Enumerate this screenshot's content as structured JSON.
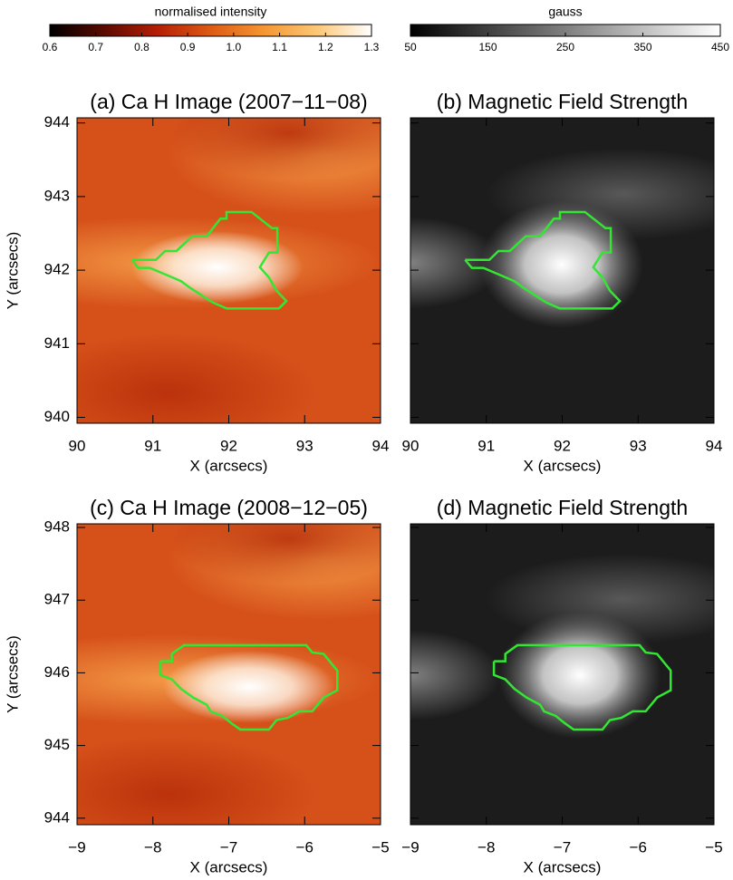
{
  "chart_data": [
    {
      "type": "colorbar",
      "label": "normalised intensity",
      "xlim": [
        0.6,
        1.3
      ],
      "xticks": [
        0.6,
        0.7,
        0.8,
        0.9,
        {
          "value": 1,
          "label": "1.0"
        },
        1.1,
        1.2,
        1.3
      ],
      "colormap": [
        "#000000",
        "#5a0a00",
        "#b41e05",
        "#dc5a14",
        "#f59632",
        "#fcc878",
        "#ffffff"
      ]
    },
    {
      "type": "colorbar",
      "label": "gauss",
      "xlim": [
        50,
        450
      ],
      "xticks": [
        50,
        150,
        250,
        350,
        450
      ],
      "colormap": [
        "#000000",
        "#ffffff"
      ]
    },
    {
      "type": "image",
      "title": "(a) Ca H Image (2007−11−08)",
      "xlabel": "X (arcsecs)",
      "ylabel": "Y (arcsecs)",
      "xlim": [
        90,
        94
      ],
      "ylim": [
        939.92,
        944.07
      ],
      "xticks": [
        90,
        91,
        92,
        93,
        94
      ],
      "yticks": [
        940,
        941,
        942,
        943,
        944
      ],
      "contour": {
        "color": "#33e633",
        "x": [
          90.72,
          91.04,
          91.16,
          91.31,
          91.52,
          91.71,
          91.89,
          91.97,
          91.97,
          92.3,
          92.57,
          92.64,
          92.64,
          92.53,
          92.41,
          92.53,
          92.63,
          92.76,
          92.66,
          91.97,
          91.79,
          91.64,
          91.49,
          91.37,
          91.19,
          90.96,
          90.81,
          90.72
        ],
        "y": [
          942.14,
          942.14,
          942.26,
          942.26,
          942.46,
          942.46,
          942.7,
          942.7,
          942.79,
          942.79,
          942.57,
          942.57,
          942.24,
          942.24,
          942.04,
          941.9,
          941.72,
          941.58,
          941.48,
          941.48,
          941.56,
          941.66,
          941.76,
          941.85,
          941.93,
          942.03,
          942.03,
          942.14
        ]
      }
    },
    {
      "type": "image",
      "title": "(b) Magnetic Field Strength",
      "xlabel": "X (arcsecs)",
      "xlim": [
        90,
        94
      ],
      "ylim": [
        939.92,
        944.07
      ],
      "xticks": [
        90,
        91,
        92,
        93,
        94
      ],
      "yticks": [
        940,
        941,
        942,
        943,
        944
      ],
      "contour": {
        "color": "#33e633",
        "x": [
          90.72,
          91.04,
          91.16,
          91.31,
          91.52,
          91.71,
          91.89,
          91.97,
          91.97,
          92.3,
          92.57,
          92.64,
          92.64,
          92.53,
          92.41,
          92.53,
          92.63,
          92.76,
          92.66,
          91.97,
          91.79,
          91.64,
          91.49,
          91.37,
          91.19,
          90.96,
          90.81,
          90.72
        ],
        "y": [
          942.14,
          942.14,
          942.26,
          942.26,
          942.46,
          942.46,
          942.7,
          942.7,
          942.79,
          942.79,
          942.57,
          942.57,
          942.24,
          942.24,
          942.04,
          941.9,
          941.72,
          941.58,
          941.48,
          941.48,
          941.56,
          941.66,
          941.76,
          941.85,
          941.93,
          942.03,
          942.03,
          942.14
        ]
      }
    },
    {
      "type": "image",
      "title": "(c) Ca H Image (2008−12−05)",
      "xlabel": "X (arcsecs)",
      "ylabel": "Y (arcsecs)",
      "xlim": [
        -9,
        -5
      ],
      "ylim": [
        943.91,
        948.05
      ],
      "xticks": [
        {
          "value": -9,
          "label": "−9"
        },
        {
          "value": -8,
          "label": "−8"
        },
        {
          "value": -7,
          "label": "−7"
        },
        {
          "value": -6,
          "label": "−6"
        },
        {
          "value": -5,
          "label": "−5"
        }
      ],
      "yticks": [
        944,
        945,
        946,
        947,
        948
      ],
      "contour": {
        "color": "#33e633",
        "x": [
          -7.9,
          -7.75,
          -7.75,
          -7.59,
          -5.98,
          -5.9,
          -5.75,
          -5.57,
          -5.57,
          -5.75,
          -5.9,
          -6.07,
          -6.22,
          -6.37,
          -6.47,
          -6.85,
          -6.97,
          -7.09,
          -7.24,
          -7.29,
          -7.47,
          -7.63,
          -7.75,
          -7.9,
          -7.9
        ],
        "y": [
          946.16,
          946.16,
          946.26,
          946.38,
          946.38,
          946.28,
          946.26,
          946.03,
          945.76,
          945.66,
          945.47,
          945.47,
          945.38,
          945.35,
          945.22,
          945.22,
          945.31,
          945.41,
          945.47,
          945.56,
          945.66,
          945.78,
          945.91,
          945.97,
          946.16
        ]
      }
    },
    {
      "type": "image",
      "title": "(d) Magnetic Field Strength",
      "xlabel": "X (arcsecs)",
      "xlim": [
        -9,
        -5
      ],
      "ylim": [
        943.91,
        948.05
      ],
      "xticks": [
        {
          "value": -9,
          "label": "−9"
        },
        {
          "value": -8,
          "label": "−8"
        },
        {
          "value": -7,
          "label": "−7"
        },
        {
          "value": -6,
          "label": "−6"
        },
        {
          "value": -5,
          "label": "−5"
        }
      ],
      "yticks": [
        944,
        945,
        946,
        947,
        948
      ],
      "contour": {
        "color": "#33e633",
        "x": [
          -7.9,
          -7.75,
          -7.75,
          -7.59,
          -5.98,
          -5.9,
          -5.75,
          -5.57,
          -5.57,
          -5.75,
          -5.9,
          -6.07,
          -6.22,
          -6.37,
          -6.47,
          -6.85,
          -6.97,
          -7.09,
          -7.24,
          -7.29,
          -7.47,
          -7.63,
          -7.75,
          -7.9,
          -7.9
        ],
        "y": [
          946.16,
          946.16,
          946.26,
          946.38,
          946.38,
          946.28,
          946.26,
          946.03,
          945.76,
          945.66,
          945.47,
          945.47,
          945.38,
          945.35,
          945.22,
          945.22,
          945.31,
          945.41,
          945.47,
          945.56,
          945.66,
          945.78,
          945.91,
          945.97,
          946.16
        ]
      }
    }
  ]
}
